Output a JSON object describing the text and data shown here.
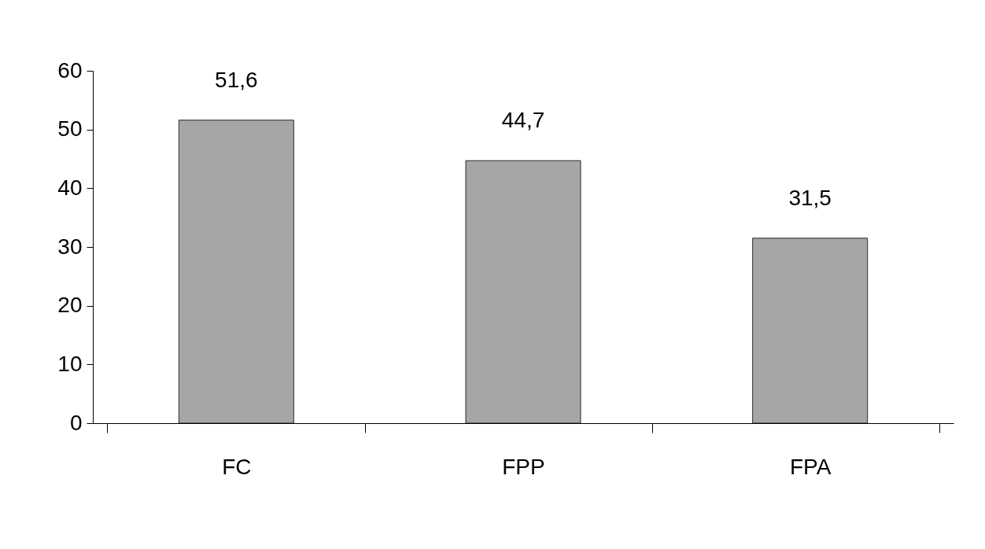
{
  "chart_data": {
    "type": "bar",
    "categories": [
      "FC",
      "FPP",
      "FPA"
    ],
    "values": [
      51.6,
      44.7,
      31.5
    ],
    "value_labels": [
      "51,6",
      "44,7",
      "31,5"
    ],
    "color": "#a6a6a6",
    "ylim": [
      0,
      60
    ],
    "yticks": [
      0,
      10,
      20,
      30,
      40,
      50,
      60
    ],
    "grid": false
  }
}
